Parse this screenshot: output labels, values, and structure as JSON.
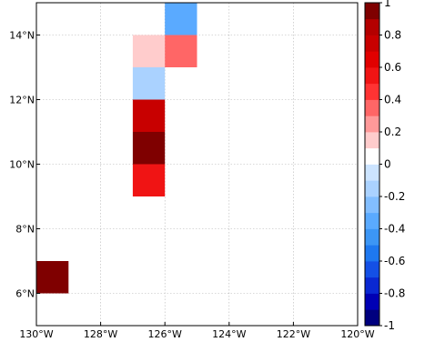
{
  "chart_data": {
    "type": "heatmap",
    "title": "",
    "xlabel": "",
    "ylabel": "",
    "xlim": [
      -130,
      -120
    ],
    "ylim": [
      5,
      15
    ],
    "grid": true,
    "cell_size_deg": 1,
    "x_ticks": [
      {
        "value": -130,
        "label": "130°W"
      },
      {
        "value": -128,
        "label": "128°W"
      },
      {
        "value": -126,
        "label": "126°W"
      },
      {
        "value": -124,
        "label": "124°W"
      },
      {
        "value": -122,
        "label": "122°W"
      },
      {
        "value": -120,
        "label": "120°W"
      }
    ],
    "y_ticks": [
      {
        "value": 6,
        "label": "6°N"
      },
      {
        "value": 8,
        "label": "8°N"
      },
      {
        "value": 10,
        "label": "10°N"
      },
      {
        "value": 12,
        "label": "12°N"
      },
      {
        "value": 14,
        "label": "14°N"
      }
    ],
    "cells": [
      {
        "lon": -130,
        "lat": 6,
        "value": 0.95
      },
      {
        "lon": -127,
        "lat": 9,
        "value": 0.55
      },
      {
        "lon": -127,
        "lat": 10,
        "value": 0.95
      },
      {
        "lon": -127,
        "lat": 11,
        "value": 0.75
      },
      {
        "lon": -127,
        "lat": 12,
        "value": -0.15
      },
      {
        "lon": -127,
        "lat": 13,
        "value": 0.15
      },
      {
        "lon": -126,
        "lat": 13,
        "value": 0.35
      },
      {
        "lon": -126,
        "lat": 14,
        "value": -0.35
      }
    ],
    "colorbar": {
      "min": -1,
      "max": 1,
      "step": 0.1,
      "colors_low_to_high": [
        "#00007f",
        "#0000b4",
        "#0a28d2",
        "#1450e6",
        "#1e78f0",
        "#3c96f5",
        "#5aaaff",
        "#82beff",
        "#aad2ff",
        "#cce4ff",
        "#ffffff",
        "#ffcccc",
        "#ff9999",
        "#ff6666",
        "#ff3333",
        "#f01414",
        "#e10000",
        "#c80000",
        "#b40000",
        "#7f0000"
      ],
      "ticks": [
        {
          "value": 1,
          "label": "1"
        },
        {
          "value": 0.8,
          "label": "0.8"
        },
        {
          "value": 0.6,
          "label": "0.6"
        },
        {
          "value": 0.4,
          "label": "0.4"
        },
        {
          "value": 0.2,
          "label": "0.2"
        },
        {
          "value": 0,
          "label": "0"
        },
        {
          "value": -0.2,
          "label": "-0.2"
        },
        {
          "value": -0.4,
          "label": "-0.4"
        },
        {
          "value": -0.6,
          "label": "-0.6"
        },
        {
          "value": -0.8,
          "label": "-0.8"
        },
        {
          "value": -1,
          "label": "-1"
        }
      ]
    }
  }
}
